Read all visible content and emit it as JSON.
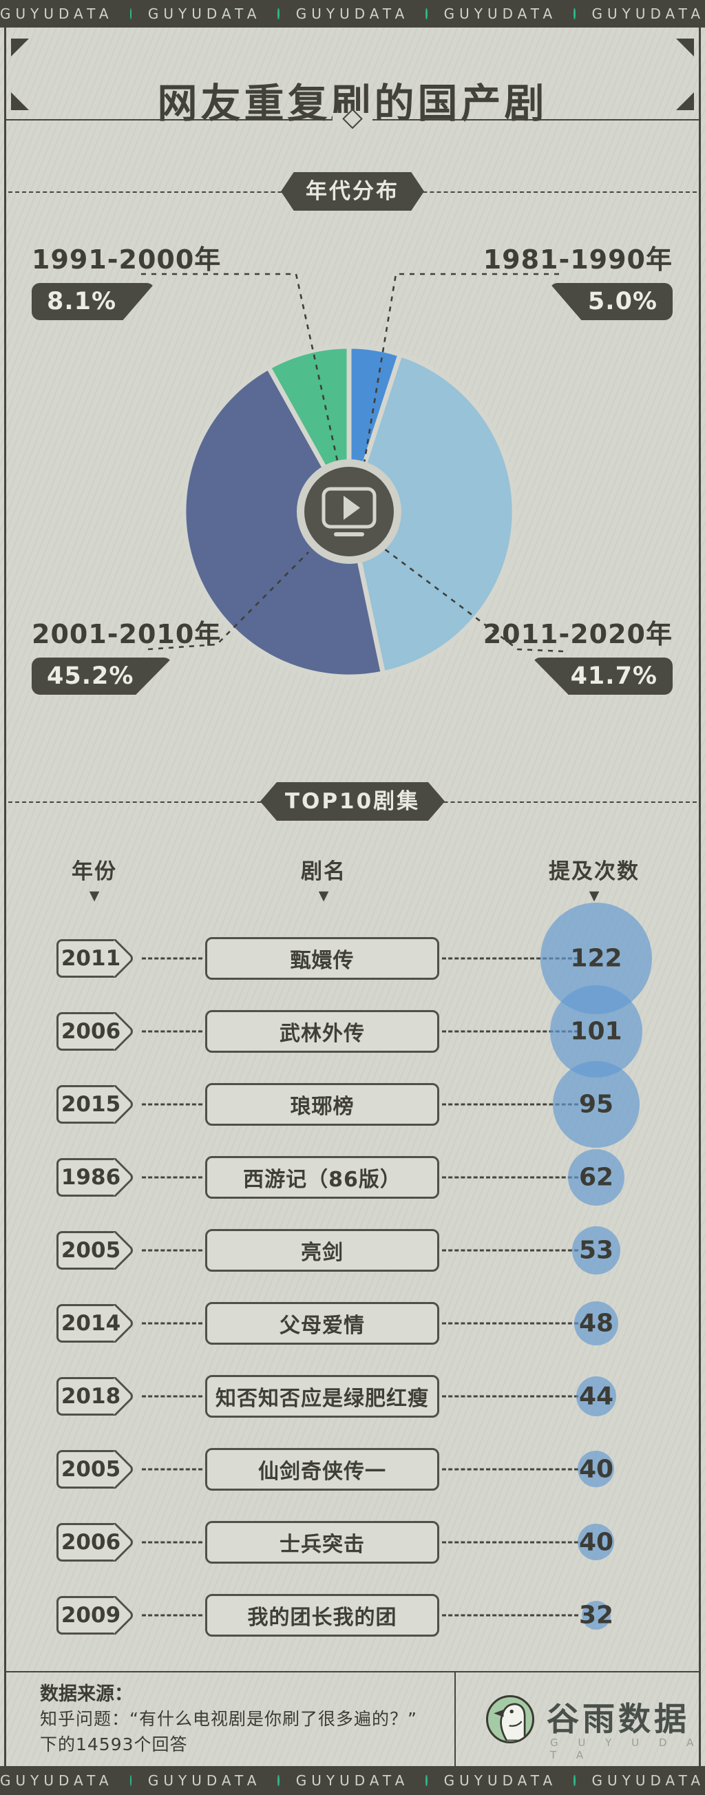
{
  "brand_bar": {
    "label": "GUYUDATA",
    "repeat": 5,
    "dot_color": "#2eb98c"
  },
  "header": {
    "title": "网友重复刷的国产剧"
  },
  "pie_section": {
    "badge": "年代分布"
  },
  "top10_section": {
    "badge": "TOP10剧集",
    "columns": [
      "年份",
      "剧名",
      "提及次数"
    ],
    "caret": "▼"
  },
  "chart_data": [
    {
      "type": "pie",
      "title": "年代分布",
      "start_angle": "12 o'clock, clockwise",
      "slices": [
        {
          "label": "1981-1990年",
          "value": 5.0,
          "color": "#4a8ed6",
          "callout": "tr"
        },
        {
          "label": "2011-2020年",
          "value": 41.7,
          "color": "#97c2d8",
          "callout": "br"
        },
        {
          "label": "2001-2010年",
          "value": 45.2,
          "color": "#5a6a94",
          "callout": "bl"
        },
        {
          "label": "1991-2000年",
          "value": 8.1,
          "color": "#4fbd8c",
          "callout": "tl"
        }
      ]
    },
    {
      "type": "bubble-table",
      "title": "TOP10剧集",
      "columns": [
        "年份",
        "剧名",
        "提及次数"
      ],
      "bubble_color": "#6199d2",
      "rows": [
        {
          "year": "2011",
          "title": "甄嬛传",
          "mentions": 122
        },
        {
          "year": "2006",
          "title": "武林外传",
          "mentions": 101
        },
        {
          "year": "2015",
          "title": "琅琊榜",
          "mentions": 95
        },
        {
          "year": "1986",
          "title": "西游记（86版）",
          "mentions": 62
        },
        {
          "year": "2005",
          "title": "亮剑",
          "mentions": 53
        },
        {
          "year": "2014",
          "title": "父母爱情",
          "mentions": 48
        },
        {
          "year": "2018",
          "title": "知否知否应是绿肥红瘦",
          "mentions": 44
        },
        {
          "year": "2005",
          "title": "仙剑奇侠传一",
          "mentions": 40
        },
        {
          "year": "2006",
          "title": "士兵突击",
          "mentions": 40
        },
        {
          "year": "2009",
          "title": "我的团长我的团",
          "mentions": 32
        }
      ]
    }
  ],
  "footer": {
    "source_label": "数据来源：",
    "source_line1": "知乎问题：“有什么电视剧是你刷了很多遍的？”",
    "source_line2": "下的14593个回答",
    "logo_cn": "谷雨数据",
    "logo_en": "G U Y U D A T A"
  }
}
